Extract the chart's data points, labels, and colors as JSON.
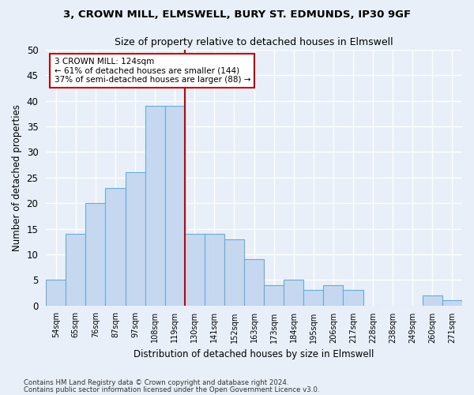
{
  "title1": "3, CROWN MILL, ELMSWELL, BURY ST. EDMUNDS, IP30 9GF",
  "title2": "Size of property relative to detached houses in Elmswell",
  "xlabel": "Distribution of detached houses by size in Elmswell",
  "ylabel": "Number of detached properties",
  "bar_color": "#c5d8f0",
  "bar_edge_color": "#6aaad4",
  "bin_labels": [
    "54sqm",
    "65sqm",
    "76sqm",
    "87sqm",
    "97sqm",
    "108sqm",
    "119sqm",
    "130sqm",
    "141sqm",
    "152sqm",
    "163sqm",
    "173sqm",
    "184sqm",
    "195sqm",
    "206sqm",
    "217sqm",
    "228sqm",
    "238sqm",
    "249sqm",
    "260sqm",
    "271sqm"
  ],
  "values": [
    5,
    14,
    20,
    23,
    26,
    39,
    39,
    14,
    14,
    13,
    9,
    4,
    5,
    3,
    4,
    3,
    0,
    0,
    0,
    2,
    1
  ],
  "annotation_line1": "3 CROWN MILL: 124sqm",
  "annotation_line2": "← 61% of detached houses are smaller (144)",
  "annotation_line3": "37% of semi-detached houses are larger (88) →",
  "vline_color": "#cc0000",
  "ylim": [
    0,
    50
  ],
  "yticks": [
    0,
    5,
    10,
    15,
    20,
    25,
    30,
    35,
    40,
    45,
    50
  ],
  "annotation_box_color": "#ffffff",
  "annotation_box_edgecolor": "#cc0000",
  "background_color": "#e8eff8",
  "grid_color": "#ffffff",
  "footer1": "Contains HM Land Registry data © Crown copyright and database right 2024.",
  "footer2": "Contains public sector information licensed under the Open Government Licence v3.0."
}
